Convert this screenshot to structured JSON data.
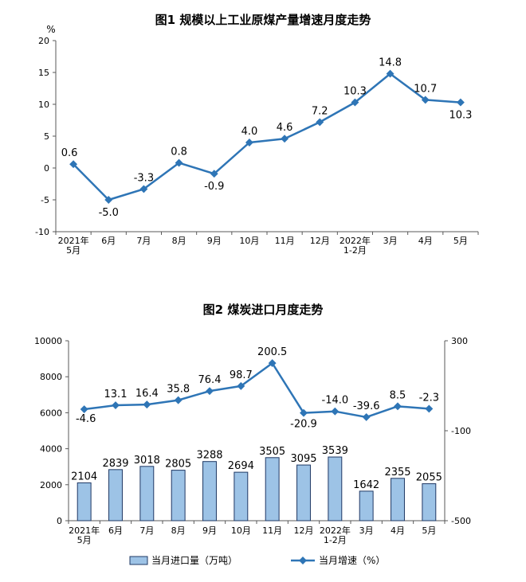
{
  "chart_data": [
    {
      "type": "line",
      "title": "图1  规模以上工业原煤产量增速月度走势",
      "ylabel": "%",
      "ylim": [
        -10,
        20
      ],
      "yticks": [
        "20",
        "15",
        "10",
        "5",
        "0",
        "-5",
        "-10"
      ],
      "categories": [
        [
          "2021年",
          "5月"
        ],
        [
          "6月"
        ],
        [
          "7月"
        ],
        [
          "8月"
        ],
        [
          "9月"
        ],
        [
          "10月"
        ],
        [
          "11月"
        ],
        [
          "12月"
        ],
        [
          "2022年",
          "1-2月"
        ],
        [
          "3月"
        ],
        [
          "4月"
        ],
        [
          "5月"
        ]
      ],
      "values": [
        0.6,
        -5.0,
        -3.3,
        0.8,
        -0.9,
        4.0,
        4.6,
        7.2,
        10.3,
        14.8,
        10.7,
        10.3
      ],
      "value_labels": [
        "0.6",
        "-5.0",
        "-3.3",
        "0.8",
        "-0.9",
        "4.0",
        "4.6",
        "7.2",
        "10.3",
        "14.8",
        "10.7",
        "10.3"
      ],
      "line_color": "#2e75b6"
    },
    {
      "type": "bar",
      "title": "图2  煤炭进口月度走势",
      "ylim": [
        0,
        10000
      ],
      "yticks": [
        "10000",
        "8000",
        "6000",
        "4000",
        "2000",
        "0"
      ],
      "y2lim": [
        -500,
        300
      ],
      "y2ticks": [
        "300",
        "-100",
        "-500"
      ],
      "categories": [
        [
          "2021年",
          "5月"
        ],
        [
          "6月"
        ],
        [
          "7月"
        ],
        [
          "8月"
        ],
        [
          "9月"
        ],
        [
          "10月"
        ],
        [
          "11月"
        ],
        [
          "12月"
        ],
        [
          "2022年",
          "1-2月"
        ],
        [
          "3月"
        ],
        [
          "4月"
        ],
        [
          "5月"
        ]
      ],
      "series": [
        {
          "name": "当月进口量（万吨）",
          "type": "bar",
          "axis": "left",
          "values": [
            2104,
            2839,
            3018,
            2805,
            3288,
            2694,
            3505,
            3095,
            3539,
            1642,
            2355,
            2055
          ],
          "labels": [
            "2104",
            "2839",
            "3018",
            "2805",
            "3288",
            "2694",
            "3505",
            "3095",
            "3539",
            "1642",
            "2355",
            "2055"
          ],
          "fill": "#9dc3e6",
          "stroke": "#1f3864"
        },
        {
          "name": "当月增速（%）",
          "type": "line",
          "axis": "right",
          "values": [
            -4.6,
            13.1,
            16.4,
            35.8,
            76.4,
            98.7,
            200.5,
            -20.9,
            -14.0,
            -39.6,
            8.5,
            -2.3
          ],
          "labels": [
            "-4.6",
            "13.1",
            "16.4",
            "35.8",
            "76.4",
            "98.7",
            "200.5",
            "-20.9",
            "-14.0",
            "-39.6",
            "8.5",
            "-2.3"
          ],
          "color": "#2e75b6"
        }
      ],
      "legend_position": "bottom"
    }
  ]
}
